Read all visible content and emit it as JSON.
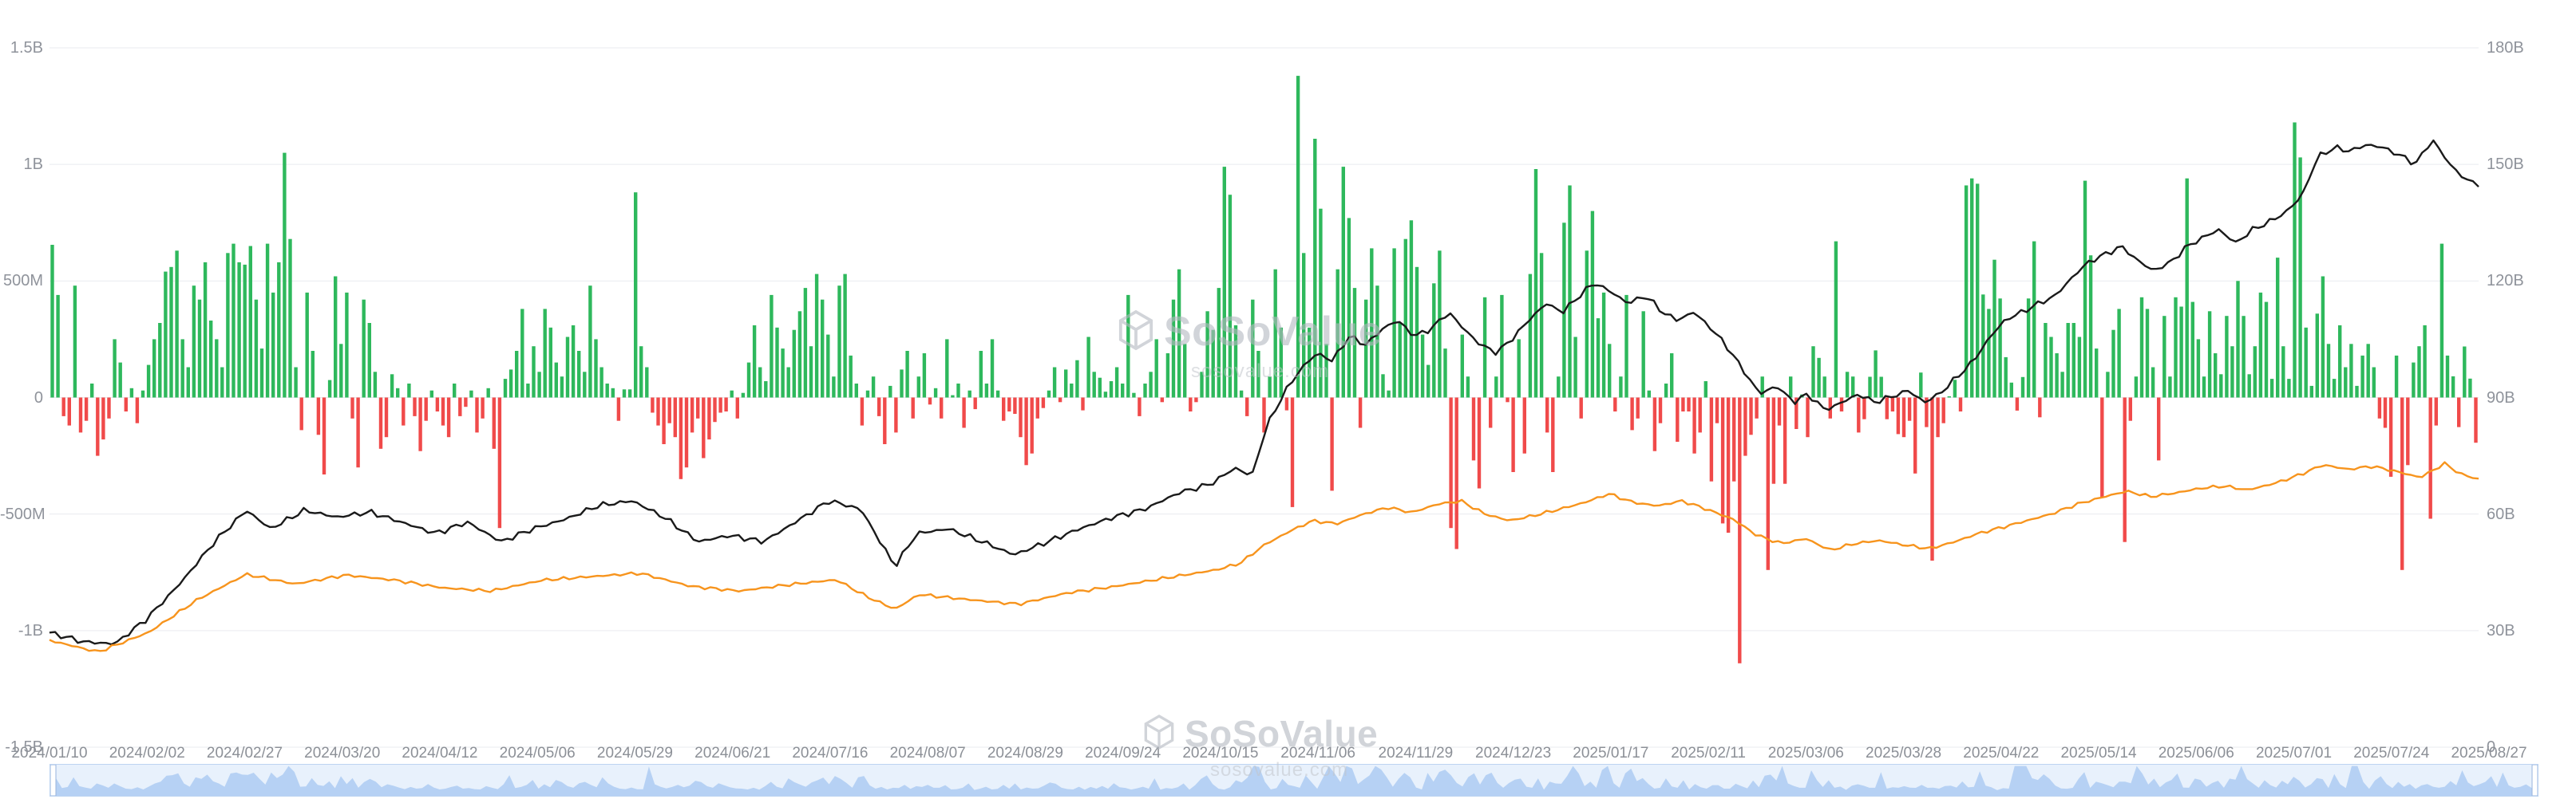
{
  "watermark": {
    "text": "SoSoValue",
    "subtext": "sosovalue.com"
  },
  "colors": {
    "background": "#ffffff",
    "grid": "#e9ebef",
    "axis_text": "#8f939b",
    "bar_positive": "#2eb85c",
    "bar_negative": "#f04a4a",
    "line_black": "#1a1a1a",
    "line_orange": "#f7941d",
    "navigator_fill": "#a9c9f1",
    "navigator_bg": "#e8f1fc",
    "navigator_border": "#bdd4f1"
  },
  "chart_data": {
    "type": "combo-bar-line",
    "grid": true,
    "legend": "none",
    "left_axis": {
      "labels": [
        "1.5B",
        "1B",
        "500M",
        "0",
        "-500M",
        "-1B",
        "-1.5B"
      ],
      "range_millions": [
        -1500,
        1500
      ]
    },
    "right_axis": {
      "labels": [
        "180B",
        "150B",
        "120B",
        "90B",
        "60B",
        "30B",
        "0"
      ],
      "range_billions": [
        0,
        180
      ]
    },
    "x_labels": [
      "2024/01/10",
      "2024/02/02",
      "2024/02/27",
      "2024/03/20",
      "2024/04/12",
      "2024/05/06",
      "2024/05/29",
      "2024/06/21",
      "2024/07/16",
      "2024/08/07",
      "2024/08/29",
      "2024/09/24",
      "2024/10/15",
      "2024/11/06",
      "2024/11/29",
      "2024/12/23",
      "2025/01/17",
      "2025/02/11",
      "2025/03/06",
      "2025/03/28",
      "2025/04/22",
      "2025/05/14",
      "2025/06/06",
      "2025/07/01",
      "2025/07/24",
      "2025/08/27"
    ],
    "bar_series": {
      "name": "daily-net-inflow",
      "unit": "USD millions",
      "values": [
        655,
        440,
        -80,
        -120,
        480,
        -150,
        -100,
        60,
        -250,
        -180,
        -90,
        250,
        150,
        -60,
        40,
        -110,
        30,
        140,
        250,
        320,
        540,
        560,
        630,
        250,
        130,
        480,
        420,
        580,
        330,
        250,
        130,
        620,
        660,
        580,
        570,
        650,
        420,
        210,
        660,
        450,
        580,
        1050,
        680,
        130,
        -140,
        450,
        200,
        -160,
        -330,
        75,
        520,
        230,
        450,
        -90,
        -300,
        420,
        320,
        110,
        -220,
        -170,
        100,
        40,
        -120,
        60,
        -80,
        -230,
        -100,
        30,
        -60,
        -120,
        -170,
        60,
        -80,
        -40,
        30,
        -150,
        -90,
        40,
        -220,
        -560,
        80,
        120,
        200,
        380,
        60,
        220,
        110,
        380,
        300,
        150,
        90,
        260,
        310,
        200,
        110,
        480,
        250,
        130,
        60,
        40,
        -100,
        35,
        35,
        880,
        220,
        130,
        -65,
        -120,
        -200,
        -110,
        -170,
        -350,
        -300,
        -150,
        -90,
        -260,
        -180,
        -105,
        -65,
        -60,
        30,
        -90,
        20,
        150,
        310,
        130,
        70,
        440,
        300,
        210,
        130,
        290,
        370,
        470,
        220,
        530,
        420,
        270,
        90,
        480,
        530,
        180,
        60,
        -120,
        30,
        90,
        -80,
        -200,
        50,
        -150,
        120,
        200,
        -90,
        90,
        190,
        -30,
        40,
        -90,
        250,
        10,
        60,
        -130,
        30,
        -50,
        200,
        60,
        250,
        30,
        -100,
        -60,
        -70,
        -170,
        -290,
        -240,
        -90,
        -45,
        30,
        130,
        -20,
        120,
        60,
        160,
        -55,
        260,
        110,
        85,
        25,
        70,
        130,
        60,
        440,
        20,
        -80,
        60,
        110,
        250,
        -20,
        190,
        420,
        550,
        230,
        -60,
        -20,
        110,
        370,
        290,
        470,
        990,
        870,
        310,
        30,
        -80,
        420,
        200,
        -150,
        90,
        550,
        300,
        -55,
        -470,
        1380,
        620,
        300,
        1110,
        810,
        230,
        -400,
        550,
        990,
        770,
        470,
        -130,
        420,
        640,
        480,
        100,
        30,
        640,
        320,
        680,
        760,
        560,
        270,
        140,
        490,
        630,
        210,
        -560,
        -650,
        270,
        90,
        -270,
        -390,
        430,
        -130,
        90,
        440,
        -20,
        -320,
        250,
        -240,
        530,
        980,
        620,
        -150,
        -320,
        90,
        750,
        910,
        260,
        -90,
        630,
        800,
        340,
        450,
        230,
        -60,
        90,
        440,
        -140,
        -90,
        370,
        30,
        -230,
        -110,
        60,
        190,
        -190,
        -60,
        -60,
        -240,
        -150,
        70,
        -360,
        -110,
        -540,
        -580,
        -360,
        -1140,
        -250,
        -160,
        -90,
        90,
        -740,
        -370,
        -120,
        -370,
        90,
        -135,
        13,
        -170,
        220,
        170,
        90,
        -90,
        670,
        -60,
        110,
        90,
        -150,
        -93,
        89,
        202,
        89,
        -93,
        -60,
        -157,
        -170,
        -100,
        -326,
        107,
        -127,
        -700,
        -170,
        -110,
        1,
        76,
        -60,
        910,
        940,
        917,
        442,
        380,
        591,
        425,
        173,
        64,
        -56,
        88,
        425,
        670,
        -85,
        320,
        260,
        190,
        110,
        320,
        320,
        260,
        930,
        610,
        210,
        -430,
        110,
        290,
        380,
        -620,
        -100,
        90,
        430,
        380,
        130,
        -270,
        350,
        90,
        430,
        390,
        940,
        410,
        250,
        90,
        370,
        190,
        100,
        350,
        220,
        500,
        350,
        100,
        220,
        450,
        410,
        80,
        600,
        220,
        80,
        1180,
        1030,
        300,
        50,
        360,
        520,
        230,
        80,
        310,
        130,
        230,
        50,
        180,
        230,
        130,
        -90,
        -130,
        -340,
        180,
        -740,
        -290,
        150,
        220,
        310,
        -520,
        -120,
        660,
        180,
        91,
        -127,
        219,
        81,
        -194
      ]
    },
    "line_series": [
      {
        "name": "total-net-assets",
        "axis": "right",
        "unit": "USD billions",
        "color_key": "line_black",
        "noise_b": 0.8,
        "points": [
          [
            0,
            29.5
          ],
          [
            0.014,
            27.1
          ],
          [
            0.027,
            26.6
          ],
          [
            0.04,
            33
          ],
          [
            0.054,
            42.3
          ],
          [
            0.068,
            52.9
          ],
          [
            0.081,
            61
          ],
          [
            0.091,
            56.2
          ],
          [
            0.105,
            61
          ],
          [
            0.118,
            59.2
          ],
          [
            0.132,
            60.5
          ],
          [
            0.145,
            57.9
          ],
          [
            0.159,
            55
          ],
          [
            0.172,
            57.9
          ],
          [
            0.186,
            52.9
          ],
          [
            0.199,
            56.2
          ],
          [
            0.213,
            58.8
          ],
          [
            0.226,
            62.2
          ],
          [
            0.24,
            63.4
          ],
          [
            0.253,
            59.2
          ],
          [
            0.267,
            52.9
          ],
          [
            0.28,
            54.5
          ],
          [
            0.294,
            52.9
          ],
          [
            0.307,
            57.9
          ],
          [
            0.321,
            63.4
          ],
          [
            0.334,
            61.3
          ],
          [
            0.348,
            46.5
          ],
          [
            0.357,
            55
          ],
          [
            0.37,
            56.2
          ],
          [
            0.384,
            52.9
          ],
          [
            0.397,
            49.5
          ],
          [
            0.411,
            52.9
          ],
          [
            0.424,
            56.2
          ],
          [
            0.438,
            59.2
          ],
          [
            0.451,
            61.3
          ],
          [
            0.465,
            65.5
          ],
          [
            0.478,
            67.7
          ],
          [
            0.488,
            71.9
          ],
          [
            0.495,
            69.8
          ],
          [
            0.501,
            82.5
          ],
          [
            0.508,
            90.9
          ],
          [
            0.515,
            97.3
          ],
          [
            0.522,
            101.5
          ],
          [
            0.528,
            99.4
          ],
          [
            0.535,
            105.7
          ],
          [
            0.542,
            103.6
          ],
          [
            0.549,
            107.8
          ],
          [
            0.555,
            109.9
          ],
          [
            0.562,
            105.7
          ],
          [
            0.569,
            107.8
          ],
          [
            0.576,
            112
          ],
          [
            0.582,
            107.8
          ],
          [
            0.589,
            103.6
          ],
          [
            0.596,
            101.5
          ],
          [
            0.603,
            105.7
          ],
          [
            0.609,
            109.9
          ],
          [
            0.616,
            114.2
          ],
          [
            0.623,
            112
          ],
          [
            0.63,
            116.3
          ],
          [
            0.636,
            119.6
          ],
          [
            0.643,
            117.1
          ],
          [
            0.65,
            114.2
          ],
          [
            0.657,
            116.3
          ],
          [
            0.664,
            112
          ],
          [
            0.67,
            109.9
          ],
          [
            0.677,
            112
          ],
          [
            0.684,
            107.8
          ],
          [
            0.69,
            103.6
          ],
          [
            0.697,
            97.3
          ],
          [
            0.704,
            90.9
          ],
          [
            0.711,
            93
          ],
          [
            0.718,
            88.8
          ],
          [
            0.724,
            90.9
          ],
          [
            0.731,
            86.7
          ],
          [
            0.738,
            88.8
          ],
          [
            0.745,
            90.9
          ],
          [
            0.751,
            88.8
          ],
          [
            0.758,
            90.1
          ],
          [
            0.765,
            91.8
          ],
          [
            0.772,
            88.8
          ],
          [
            0.778,
            90.9
          ],
          [
            0.785,
            95.1
          ],
          [
            0.792,
            99.4
          ],
          [
            0.799,
            105.7
          ],
          [
            0.805,
            109.9
          ],
          [
            0.812,
            112
          ],
          [
            0.819,
            114.2
          ],
          [
            0.826,
            116.3
          ],
          [
            0.832,
            120.5
          ],
          [
            0.839,
            124.7
          ],
          [
            0.846,
            126.8
          ],
          [
            0.853,
            128.9
          ],
          [
            0.859,
            125.6
          ],
          [
            0.866,
            122.6
          ],
          [
            0.873,
            124.7
          ],
          [
            0.88,
            128.9
          ],
          [
            0.886,
            131
          ],
          [
            0.893,
            133.2
          ],
          [
            0.9,
            129.8
          ],
          [
            0.907,
            133.2
          ],
          [
            0.914,
            135.3
          ],
          [
            0.92,
            137.4
          ],
          [
            0.927,
            141.6
          ],
          [
            0.934,
            152.2
          ],
          [
            0.941,
            154.3
          ],
          [
            0.947,
            153.4
          ],
          [
            0.954,
            155.1
          ],
          [
            0.961,
            154.3
          ],
          [
            0.968,
            152.2
          ],
          [
            0.974,
            150.1
          ],
          [
            0.981,
            156.4
          ],
          [
            0.988,
            150.1
          ],
          [
            0.995,
            145.9
          ],
          [
            1,
            145
          ]
        ]
      },
      {
        "name": "indexed-price",
        "axis": "right",
        "unit": "USD billions (indexed)",
        "color_key": "line_orange",
        "noise_b": 0.45,
        "points": [
          [
            0,
            27.5
          ],
          [
            0.02,
            24.5
          ],
          [
            0.041,
            29.6
          ],
          [
            0.061,
            38
          ],
          [
            0.081,
            44.5
          ],
          [
            0.101,
            42
          ],
          [
            0.122,
            44.3
          ],
          [
            0.142,
            43
          ],
          [
            0.162,
            41
          ],
          [
            0.182,
            40.2
          ],
          [
            0.203,
            43
          ],
          [
            0.223,
            43.9
          ],
          [
            0.243,
            44.8
          ],
          [
            0.264,
            41.4
          ],
          [
            0.284,
            40.2
          ],
          [
            0.304,
            41.8
          ],
          [
            0.324,
            43.1
          ],
          [
            0.336,
            38.9
          ],
          [
            0.348,
            35.5
          ],
          [
            0.358,
            39.3
          ],
          [
            0.378,
            38
          ],
          [
            0.399,
            36.8
          ],
          [
            0.419,
            39.7
          ],
          [
            0.439,
            41.4
          ],
          [
            0.459,
            43.5
          ],
          [
            0.48,
            45.6
          ],
          [
            0.49,
            47.3
          ],
          [
            0.5,
            52
          ],
          [
            0.51,
            55.4
          ],
          [
            0.52,
            58.3
          ],
          [
            0.53,
            57.5
          ],
          [
            0.541,
            60
          ],
          [
            0.551,
            61.7
          ],
          [
            0.561,
            60.4
          ],
          [
            0.571,
            62.5
          ],
          [
            0.581,
            63.4
          ],
          [
            0.591,
            60
          ],
          [
            0.601,
            58.3
          ],
          [
            0.611,
            59.6
          ],
          [
            0.622,
            61.3
          ],
          [
            0.632,
            63
          ],
          [
            0.642,
            65.2
          ],
          [
            0.652,
            63
          ],
          [
            0.662,
            62.1
          ],
          [
            0.672,
            63.4
          ],
          [
            0.682,
            61.3
          ],
          [
            0.693,
            58.7
          ],
          [
            0.703,
            54.5
          ],
          [
            0.713,
            52.4
          ],
          [
            0.723,
            53.7
          ],
          [
            0.733,
            50.7
          ],
          [
            0.743,
            52.4
          ],
          [
            0.753,
            53.2
          ],
          [
            0.764,
            52
          ],
          [
            0.774,
            51.1
          ],
          [
            0.784,
            52.8
          ],
          [
            0.794,
            55
          ],
          [
            0.804,
            56.6
          ],
          [
            0.814,
            58.3
          ],
          [
            0.824,
            60
          ],
          [
            0.835,
            62.6
          ],
          [
            0.845,
            64.3
          ],
          [
            0.855,
            65.9
          ],
          [
            0.865,
            64.5
          ],
          [
            0.875,
            65.4
          ],
          [
            0.885,
            66.6
          ],
          [
            0.895,
            67.2
          ],
          [
            0.905,
            66.2
          ],
          [
            0.916,
            67.9
          ],
          [
            0.926,
            70
          ],
          [
            0.936,
            72.7
          ],
          [
            0.946,
            71.5
          ],
          [
            0.956,
            72.3
          ],
          [
            0.966,
            71
          ],
          [
            0.976,
            69.4
          ],
          [
            0.986,
            73
          ],
          [
            0.993,
            70.2
          ],
          [
            1,
            69
          ]
        ]
      }
    ]
  }
}
